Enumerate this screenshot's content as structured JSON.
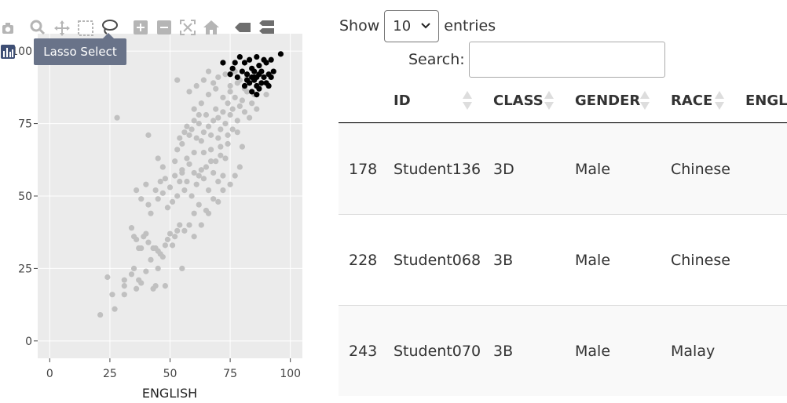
{
  "modebar": {
    "icons": [
      "camera-icon",
      "zoom-icon",
      "pan-icon",
      "box-select-icon",
      "lasso-select-icon",
      "zoom-in-icon",
      "zoom-out-icon",
      "autoscale-icon",
      "reset-axes-icon",
      "spike-lines-icon",
      "compare-hover-icon"
    ]
  },
  "tooltip": {
    "text": "Lasso Select"
  },
  "chart_data": {
    "type": "scatter",
    "xlabel": "ENGLISH",
    "ylabel": "",
    "xlim": [
      -5,
      105
    ],
    "ylim": [
      -6,
      106
    ],
    "xticks": [
      0,
      25,
      50,
      75,
      100
    ],
    "yticks": [
      0,
      25,
      50,
      75,
      100
    ],
    "xtick_labels": [
      "0",
      "25",
      "50",
      "75",
      "100"
    ],
    "ytick_labels": [
      "0",
      "25",
      "50",
      "75",
      "100"
    ],
    "grid": true,
    "colors": {
      "unselected": "#c0c0c0",
      "selected": "#000000",
      "plot_bg": "#ebebeb",
      "grid": "#ffffff"
    },
    "series": [
      {
        "values": [
          [
            21,
            9
          ],
          [
            24,
            22
          ],
          [
            26,
            16
          ],
          [
            27,
            11
          ],
          [
            31,
            16
          ],
          [
            31,
            19
          ],
          [
            31,
            21
          ],
          [
            34,
            23
          ],
          [
            35,
            25
          ],
          [
            36,
            18
          ],
          [
            37,
            21
          ],
          [
            38,
            20
          ],
          [
            40,
            24
          ],
          [
            44,
            19
          ],
          [
            45,
            25
          ],
          [
            48,
            19
          ],
          [
            55,
            25
          ],
          [
            43,
            18
          ],
          [
            34,
            39
          ],
          [
            35,
            36
          ],
          [
            36,
            35
          ],
          [
            37,
            32
          ],
          [
            38,
            32
          ],
          [
            39,
            36
          ],
          [
            40,
            37
          ],
          [
            41,
            34
          ],
          [
            42,
            28
          ],
          [
            43,
            32
          ],
          [
            44,
            32
          ],
          [
            45,
            31
          ],
          [
            46,
            30
          ],
          [
            47,
            29
          ],
          [
            48,
            33
          ],
          [
            49,
            35
          ],
          [
            50,
            37
          ],
          [
            51,
            33
          ],
          [
            52,
            36
          ],
          [
            53,
            38
          ],
          [
            54,
            40
          ],
          [
            56,
            38
          ],
          [
            58,
            40
          ],
          [
            60,
            36
          ],
          [
            36,
            52
          ],
          [
            38,
            49
          ],
          [
            40,
            54
          ],
          [
            41,
            47
          ],
          [
            42,
            44
          ],
          [
            44,
            52
          ],
          [
            45,
            49
          ],
          [
            46,
            55
          ],
          [
            47,
            51
          ],
          [
            48,
            56
          ],
          [
            49,
            46
          ],
          [
            50,
            53
          ],
          [
            51,
            48
          ],
          [
            52,
            57
          ],
          [
            53,
            50
          ],
          [
            54,
            55
          ],
          [
            55,
            58
          ],
          [
            56,
            52
          ],
          [
            57,
            55
          ],
          [
            58,
            61
          ],
          [
            59,
            50
          ],
          [
            60,
            58
          ],
          [
            61,
            54
          ],
          [
            62,
            57
          ],
          [
            63,
            59
          ],
          [
            64,
            56
          ],
          [
            65,
            60
          ],
          [
            66,
            52
          ],
          [
            67,
            62
          ],
          [
            68,
            58
          ],
          [
            69,
            62
          ],
          [
            70,
            55
          ],
          [
            71,
            64
          ],
          [
            72,
            57
          ],
          [
            73,
            63
          ],
          [
            74,
            68
          ],
          [
            66,
            44
          ],
          [
            62,
            47
          ],
          [
            28,
            77
          ],
          [
            41,
            71
          ],
          [
            52,
            62
          ],
          [
            53,
            66
          ],
          [
            54,
            70
          ],
          [
            55,
            68
          ],
          [
            56,
            72
          ],
          [
            57,
            74
          ],
          [
            58,
            71
          ],
          [
            59,
            73
          ],
          [
            60,
            76
          ],
          [
            61,
            70
          ],
          [
            62,
            75
          ],
          [
            63,
            69
          ],
          [
            64,
            72
          ],
          [
            65,
            78
          ],
          [
            66,
            74
          ],
          [
            67,
            71
          ],
          [
            68,
            76
          ],
          [
            69,
            80
          ],
          [
            70,
            77
          ],
          [
            71,
            73
          ],
          [
            72,
            79
          ],
          [
            73,
            75
          ],
          [
            74,
            82
          ],
          [
            75,
            78
          ],
          [
            76,
            80
          ],
          [
            77,
            84
          ],
          [
            78,
            76
          ],
          [
            79,
            81
          ],
          [
            80,
            83
          ],
          [
            81,
            79
          ],
          [
            82,
            86
          ],
          [
            83,
            77
          ],
          [
            84,
            82
          ],
          [
            85,
            85
          ],
          [
            86,
            80
          ],
          [
            60,
            80
          ],
          [
            63,
            82
          ],
          [
            66,
            85
          ],
          [
            69,
            87
          ],
          [
            72,
            84
          ],
          [
            75,
            86
          ],
          [
            78,
            89
          ],
          [
            81,
            87
          ],
          [
            84,
            90
          ],
          [
            87,
            88
          ],
          [
            90,
            85
          ],
          [
            62,
            78
          ],
          [
            67,
            66
          ],
          [
            70,
            70
          ],
          [
            53,
            90
          ],
          [
            58,
            86
          ],
          [
            61,
            88
          ],
          [
            64,
            90
          ],
          [
            66,
            93
          ],
          [
            68,
            89
          ],
          [
            70,
            91
          ],
          [
            73,
            92
          ],
          [
            75,
            88
          ],
          [
            77,
            93
          ],
          [
            79,
            90
          ],
          [
            82,
            91
          ],
          [
            60,
            65
          ],
          [
            64,
            65
          ],
          [
            71,
            67
          ],
          [
            74,
            71
          ],
          [
            76,
            73
          ],
          [
            78,
            72
          ],
          [
            55,
            59
          ],
          [
            57,
            63
          ],
          [
            45,
            63
          ],
          [
            47,
            60
          ],
          [
            60,
            44
          ],
          [
            63,
            40
          ],
          [
            65,
            45
          ],
          [
            68,
            49
          ],
          [
            70,
            48
          ],
          [
            72,
            52
          ],
          [
            75,
            54
          ],
          [
            77,
            57
          ],
          [
            79,
            60
          ],
          [
            80,
            67
          ]
        ]
      },
      {
        "values": [
          [
            72,
            96
          ],
          [
            75,
            92
          ],
          [
            76,
            94
          ],
          [
            77,
            96
          ],
          [
            78,
            91
          ],
          [
            79,
            98
          ],
          [
            80,
            93
          ],
          [
            81,
            96
          ],
          [
            82,
            92
          ],
          [
            83,
            97
          ],
          [
            84,
            94
          ],
          [
            85,
            91
          ],
          [
            86,
            98
          ],
          [
            87,
            95
          ],
          [
            88,
            93
          ],
          [
            89,
            97
          ],
          [
            90,
            96
          ],
          [
            91,
            92
          ],
          [
            92,
            97
          ],
          [
            96,
            99
          ],
          [
            81,
            88
          ],
          [
            83,
            89
          ],
          [
            85,
            90
          ],
          [
            86,
            88
          ],
          [
            87,
            87
          ],
          [
            88,
            89
          ],
          [
            89,
            91
          ],
          [
            90,
            89
          ],
          [
            91,
            88
          ],
          [
            92,
            91
          ],
          [
            93,
            93
          ],
          [
            86,
            85
          ],
          [
            84,
            86
          ],
          [
            82,
            90
          ],
          [
            85,
            93
          ],
          [
            87,
            92
          ],
          [
            84,
            91
          ],
          [
            86,
            91
          ]
        ]
      }
    ]
  },
  "table": {
    "length_label_before": "Show",
    "length_value": "10",
    "length_label_after": "entries",
    "search_label": "Search:",
    "search_value": "",
    "columns": [
      "ID",
      "CLASS",
      "GENDER",
      "RACE",
      "ENGL"
    ],
    "rows": [
      [
        "178",
        "Student136",
        "3D",
        "Male",
        "Chinese"
      ],
      [
        "228",
        "Student068",
        "3B",
        "Male",
        "Chinese"
      ],
      [
        "243",
        "Student070",
        "3B",
        "Male",
        "Malay"
      ]
    ]
  }
}
